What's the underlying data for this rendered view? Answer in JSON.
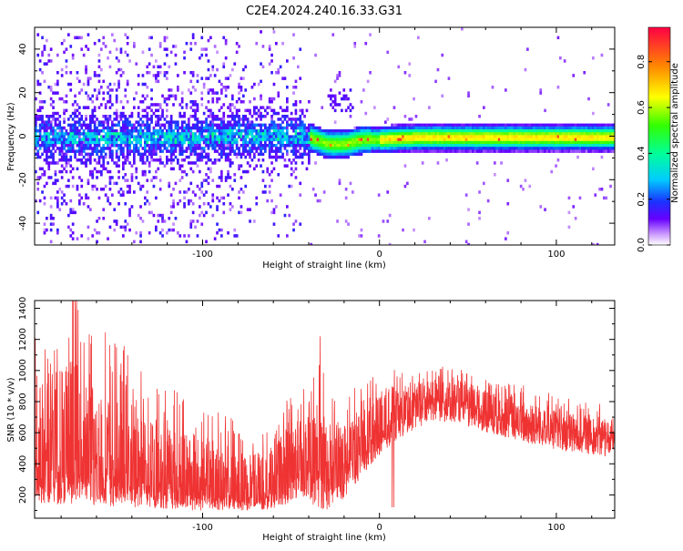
{
  "figure": {
    "title": "C2E4.2024.240.16.33.G31"
  },
  "chart_data": [
    {
      "type": "heatmap",
      "title": "C2E4.2024.240.16.33.G31",
      "xlabel": "Height of straight line (km)",
      "ylabel": "Frequency (Hz)",
      "xlim": [
        -195,
        133
      ],
      "ylim": [
        -50,
        50
      ],
      "xticks": [
        -100,
        0,
        100
      ],
      "yticks": [
        -40,
        -20,
        0,
        20,
        40
      ],
      "colorbar": {
        "label": "Normalized spectral amplitude",
        "range": [
          0,
          0.95
        ],
        "ticks": [
          0.0,
          0.2,
          0.4,
          0.6,
          0.8
        ],
        "colormap": "rainbow (white-purple-blue-cyan-green-yellow-orange-red)"
      },
      "description_points": {
        "signal_track_frequency_vs_height": [
          {
            "x": -195,
            "y": 0
          },
          {
            "x": -100,
            "y": 0
          },
          {
            "x": -60,
            "y": 1
          },
          {
            "x": -40,
            "y": 0
          },
          {
            "x": -30,
            "y": -3
          },
          {
            "x": -20,
            "y": -3
          },
          {
            "x": -10,
            "y": -1
          },
          {
            "x": 0,
            "y": -1
          },
          {
            "x": 20,
            "y": 0
          },
          {
            "x": 133,
            "y": 0
          }
        ]
      }
    },
    {
      "type": "line",
      "xlabel": "Height of straight line (km)",
      "ylabel": "SNR (10 * v/v)",
      "xlim": [
        -195,
        133
      ],
      "ylim": [
        50,
        1450
      ],
      "xticks": [
        -100,
        0,
        100
      ],
      "yticks": [
        200,
        400,
        600,
        800,
        1000,
        1200,
        1400
      ],
      "color": "#ef3333",
      "series": [
        {
          "x": [
            -195,
            -185,
            -175,
            -165,
            -155,
            -145,
            -135,
            -125,
            -115,
            -105,
            -95,
            -85,
            -75,
            -65,
            -55,
            -45,
            -40,
            -35,
            -30,
            -25,
            -20,
            -15,
            -10,
            -5,
            0,
            5,
            10,
            20,
            30,
            35,
            40,
            50,
            60,
            70,
            80,
            90,
            100,
            110,
            120,
            133
          ],
          "upper": [
            1050,
            1000,
            1100,
            950,
            900,
            850,
            750,
            700,
            650,
            600,
            560,
            520,
            500,
            450,
            580,
            750,
            700,
            900,
            680,
            650,
            680,
            720,
            750,
            800,
            870,
            900,
            880,
            900,
            960,
            950,
            940,
            910,
            880,
            850,
            820,
            790,
            760,
            730,
            720,
            680
          ],
          "mid": [
            380,
            360,
            350,
            330,
            310,
            300,
            280,
            260,
            240,
            220,
            210,
            200,
            190,
            180,
            260,
            360,
            350,
            330,
            300,
            330,
            380,
            430,
            480,
            520,
            600,
            650,
            700,
            760,
            820,
            810,
            800,
            770,
            730,
            690,
            660,
            630,
            610,
            590,
            580,
            560
          ],
          "lower": [
            150,
            140,
            140,
            130,
            130,
            120,
            120,
            110,
            110,
            100,
            100,
            100,
            100,
            100,
            130,
            180,
            150,
            120,
            100,
            130,
            180,
            250,
            320,
            380,
            450,
            500,
            550,
            620,
            680,
            670,
            660,
            640,
            600,
            570,
            540,
            510,
            490,
            470,
            460,
            440
          ]
        }
      ]
    }
  ]
}
